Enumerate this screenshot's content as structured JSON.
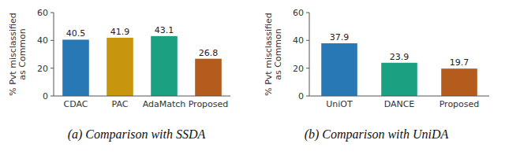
{
  "chart_data": [
    {
      "type": "bar",
      "title": "(a) Comparison with SSDA",
      "categories": [
        "CDAC",
        "PAC",
        "AdaMatch",
        "Proposed"
      ],
      "values": [
        40.5,
        41.9,
        43.1,
        26.8
      ],
      "colors": [
        "#2878b5",
        "#c8960c",
        "#1ba082",
        "#b35c1e"
      ],
      "y_label": "% Pvt misclassified\nas Common",
      "ylim": [
        0,
        60
      ],
      "yticks": [
        0,
        20,
        40,
        60
      ],
      "data_labels": true,
      "grid": false
    },
    {
      "type": "bar",
      "title": "(b) Comparison with UniDA",
      "categories": [
        "UniOT",
        "DANCE",
        "Proposed"
      ],
      "values": [
        37.9,
        23.9,
        19.7
      ],
      "colors": [
        "#2878b5",
        "#1ba082",
        "#b35c1e"
      ],
      "y_label": "% Pvt misclassified\nas Common",
      "ylim": [
        0,
        60
      ],
      "yticks": [
        0,
        20,
        40,
        60
      ],
      "data_labels": true,
      "grid": false
    }
  ]
}
